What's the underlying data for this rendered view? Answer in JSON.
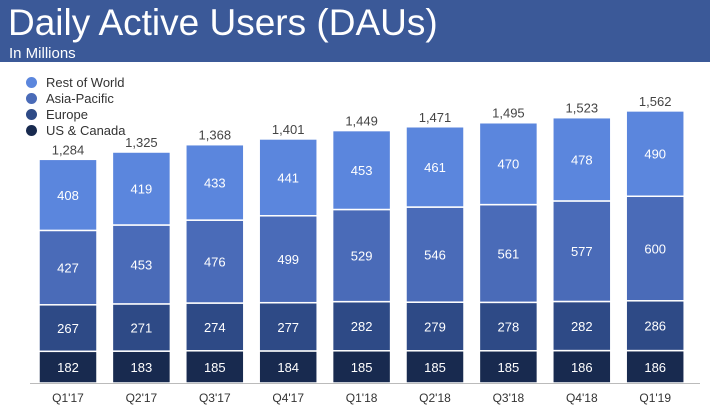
{
  "header": {
    "title": "Daily Active Users (DAUs)",
    "subtitle": "In Millions"
  },
  "chart_data": {
    "type": "bar",
    "stacked": true,
    "title": "Daily Active Users (DAUs)",
    "subtitle": "In Millions",
    "categories": [
      "Q1'17",
      "Q2'17",
      "Q3'17",
      "Q4'17",
      "Q1'18",
      "Q2'18",
      "Q3'18",
      "Q4'18",
      "Q1'19"
    ],
    "series": [
      {
        "name": "US & Canada",
        "color": "#182a4f",
        "values": [
          182,
          183,
          185,
          184,
          185,
          185,
          185,
          186,
          186
        ]
      },
      {
        "name": "Europe",
        "color": "#2e4a86",
        "values": [
          267,
          271,
          274,
          277,
          282,
          279,
          278,
          282,
          286
        ]
      },
      {
        "name": "Asia-Pacific",
        "color": "#4a6bb8",
        "values": [
          427,
          453,
          476,
          499,
          529,
          546,
          561,
          577,
          600
        ]
      },
      {
        "name": "Rest of World",
        "color": "#5b86dd",
        "values": [
          408,
          419,
          433,
          441,
          453,
          461,
          470,
          478,
          490
        ]
      }
    ],
    "totals": [
      "1,284",
      "1,325",
      "1,368",
      "1,401",
      "1,449",
      "1,471",
      "1,495",
      "1,523",
      "1,562"
    ],
    "legend_placement": "top-left",
    "grid": false
  }
}
